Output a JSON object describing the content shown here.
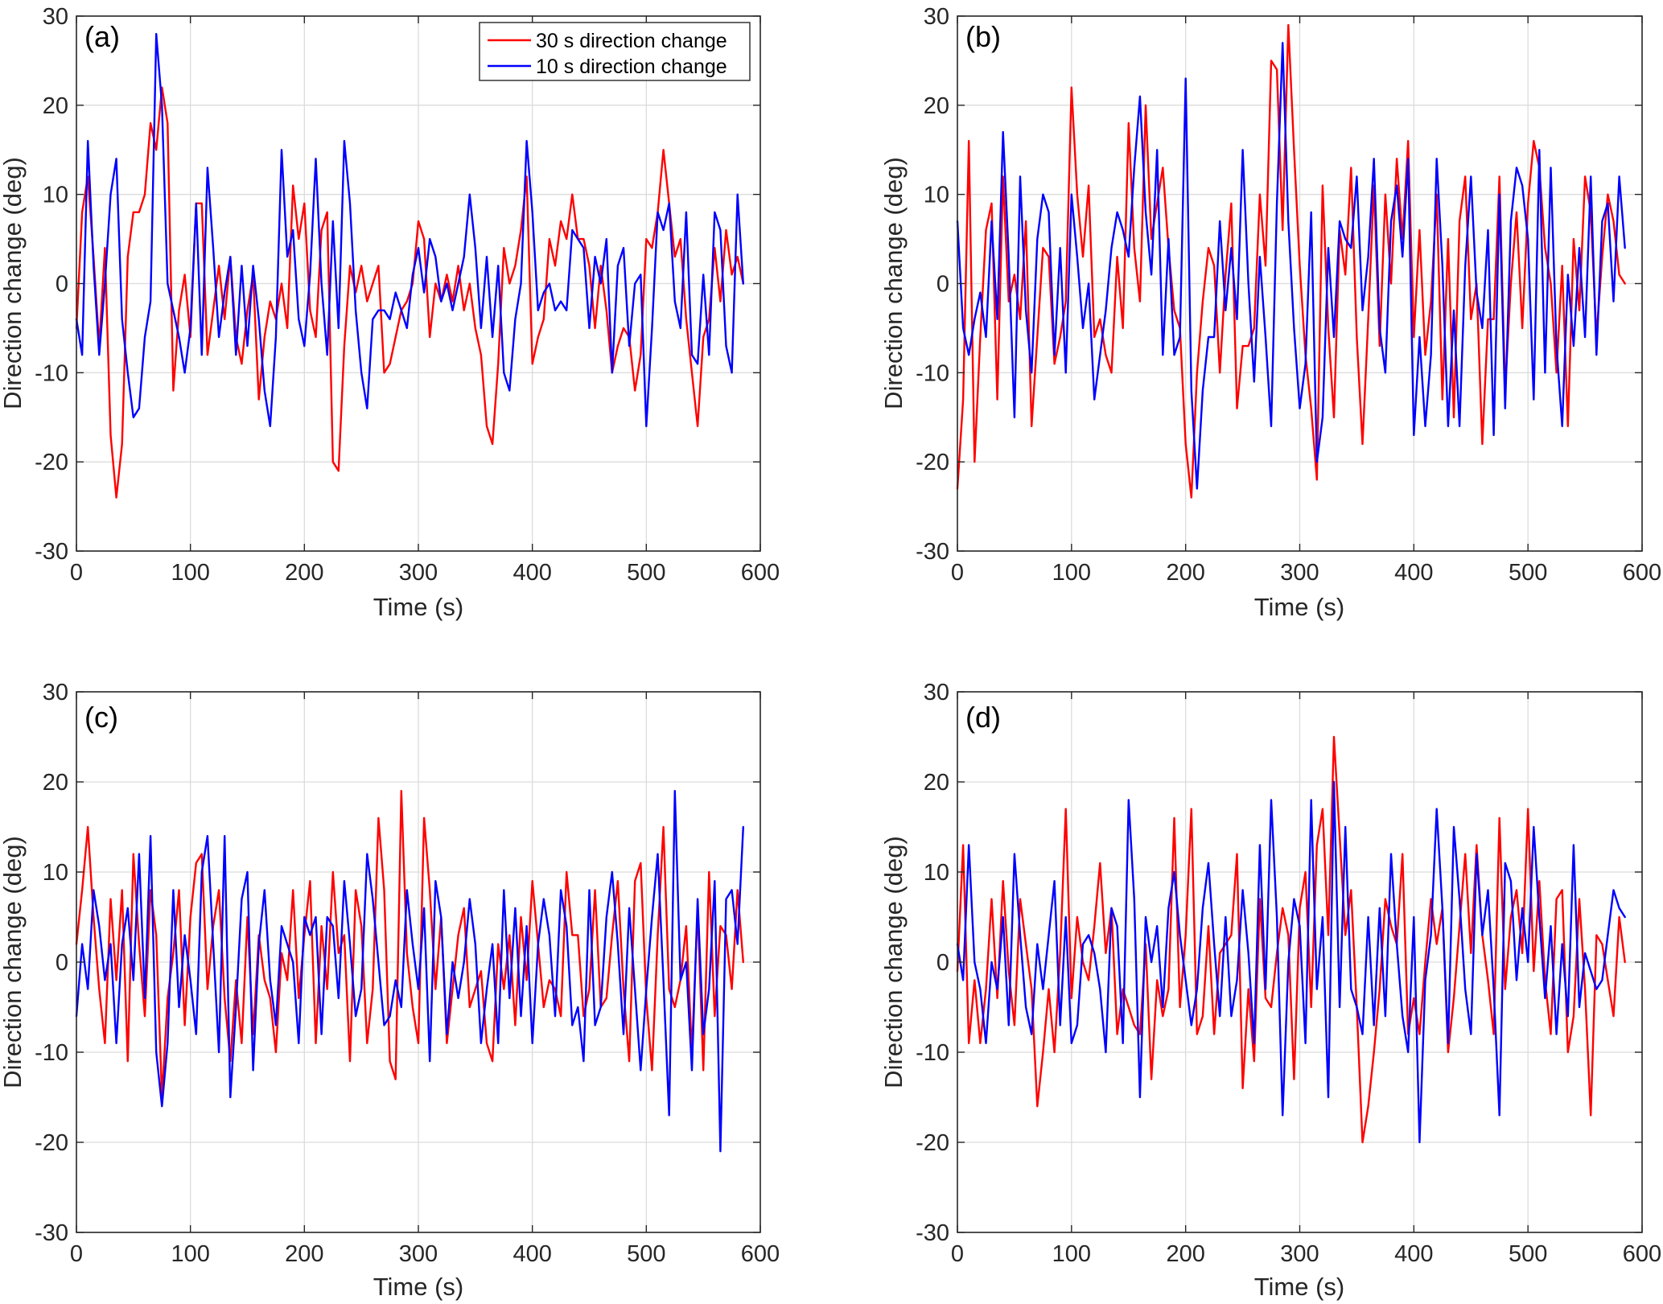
{
  "figure": {
    "legend": {
      "items": [
        {
          "label": "30 s direction change",
          "color": "#ff0000"
        },
        {
          "label": "10 s direction change",
          "color": "#0000ff"
        }
      ],
      "location": "top-right of panel (a)"
    }
  },
  "chart_data": [
    {
      "type": "line",
      "panel": "(a)",
      "title": "",
      "xlabel": "Time (s)",
      "ylabel": "Direction change (deg)",
      "xlim": [
        0,
        600
      ],
      "ylim": [
        -30,
        30
      ],
      "xticks": [
        0,
        100,
        200,
        300,
        400,
        500,
        600
      ],
      "yticks": [
        -30,
        -20,
        -10,
        0,
        10,
        20,
        30
      ],
      "grid": true,
      "legend": true,
      "x_step": 5,
      "series": [
        {
          "name": "30 s direction change",
          "color": "#ff0000",
          "values": [
            -5,
            8,
            12,
            3,
            -7,
            4,
            -17,
            -24,
            -18,
            3,
            8,
            8,
            10,
            18,
            15,
            22,
            18,
            -12,
            -3,
            1,
            -6,
            9,
            9,
            -8,
            -3,
            2,
            -4,
            3,
            -6,
            -9,
            -3,
            1,
            -13,
            -6,
            -2,
            -4,
            0,
            -5,
            11,
            5,
            9,
            -3,
            -6,
            6,
            8,
            -20,
            -21,
            -7,
            2,
            -1,
            2,
            -2,
            0,
            2,
            -10,
            -9,
            -6,
            -3,
            -2,
            0,
            7,
            5,
            -6,
            0,
            -2,
            1,
            -2,
            2,
            -3,
            0,
            -5,
            -8,
            -16,
            -18,
            -9,
            4,
            0,
            2,
            6,
            12,
            -9,
            -6,
            -4,
            5,
            2,
            7,
            5,
            10,
            5,
            5,
            2,
            -5,
            2,
            -3,
            -10,
            -7,
            -5,
            -6,
            -12,
            -8,
            5,
            4,
            8,
            15,
            9,
            3,
            5,
            -4,
            -10,
            -16,
            -6,
            -4,
            4,
            -2,
            6,
            1,
            3,
            0
          ]
        },
        {
          "name": "10 s direction change",
          "color": "#0000ff",
          "values": [
            -4,
            -8,
            16,
            2,
            -8,
            0,
            10,
            14,
            -4,
            -10,
            -15,
            -14,
            -6,
            -2,
            28,
            20,
            0,
            -3,
            -6,
            -10,
            -5,
            9,
            -8,
            13,
            4,
            -6,
            -1,
            3,
            -8,
            2,
            -7,
            2,
            -4,
            -12,
            -16,
            -6,
            15,
            3,
            6,
            -4,
            -7,
            1,
            14,
            0,
            -8,
            7,
            -5,
            16,
            9,
            -3,
            -10,
            -14,
            -4,
            -3,
            -3,
            -4,
            -1,
            -3,
            -5,
            1,
            4,
            -1,
            5,
            3,
            -2,
            0,
            -3,
            0,
            3,
            10,
            4,
            -5,
            3,
            -6,
            2,
            -10,
            -12,
            -4,
            0,
            16,
            8,
            -3,
            -1,
            0,
            -3,
            -2,
            -3,
            6,
            5,
            4,
            -5,
            3,
            0,
            5,
            -10,
            2,
            4,
            -7,
            0,
            1,
            -16,
            -5,
            8,
            6,
            9,
            -2,
            -5,
            8,
            -8,
            -9,
            1,
            -8,
            8,
            6,
            -7,
            -10,
            10,
            0
          ]
        }
      ]
    },
    {
      "type": "line",
      "panel": "(b)",
      "title": "",
      "xlabel": "Time (s)",
      "ylabel": "Direction change (deg)",
      "xlim": [
        0,
        600
      ],
      "ylim": [
        -30,
        30
      ],
      "xticks": [
        0,
        100,
        200,
        300,
        400,
        500,
        600
      ],
      "yticks": [
        -30,
        -20,
        -10,
        0,
        10,
        20,
        30
      ],
      "grid": true,
      "legend": false,
      "x_step": 5,
      "series": [
        {
          "name": "30 s direction change",
          "color": "#ff0000",
          "values": [
            -23,
            -13,
            16,
            -20,
            -6,
            6,
            9,
            -13,
            12,
            -2,
            1,
            -4,
            7,
            -16,
            -6,
            4,
            3,
            -9,
            -6,
            -2,
            22,
            10,
            3,
            11,
            -6,
            -4,
            -8,
            -10,
            3,
            -5,
            18,
            4,
            -2,
            20,
            5,
            9,
            13,
            4,
            -3,
            -5,
            -18,
            -24,
            -10,
            -2,
            4,
            2,
            -10,
            1,
            9,
            -14,
            -7,
            -7,
            -5,
            10,
            2,
            25,
            24,
            6,
            29,
            15,
            2,
            -8,
            -14,
            -22,
            11,
            -5,
            -15,
            6,
            1,
            13,
            -6,
            -18,
            -4,
            11,
            -7,
            10,
            0,
            14,
            5,
            16,
            -6,
            6,
            -8,
            -2,
            10,
            -13,
            5,
            -15,
            7,
            12,
            -4,
            0,
            -18,
            -4,
            -4,
            12,
            -12,
            0,
            8,
            -5,
            9,
            16,
            13,
            4,
            0,
            -10,
            2,
            -16,
            5,
            -3,
            12,
            8,
            -6,
            3,
            10,
            7,
            1,
            0
          ]
        },
        {
          "name": "10 s direction change",
          "color": "#0000ff",
          "values": [
            7,
            -5,
            -8,
            -4,
            -1,
            -6,
            7,
            -4,
            17,
            3,
            -15,
            12,
            -3,
            -10,
            5,
            10,
            8,
            -8,
            4,
            -10,
            10,
            3,
            -5,
            0,
            -13,
            -8,
            -3,
            4,
            8,
            6,
            3,
            13,
            21,
            8,
            1,
            15,
            -8,
            5,
            -8,
            -6,
            23,
            -12,
            -23,
            -12,
            -6,
            -6,
            7,
            -3,
            4,
            -4,
            15,
            0,
            -11,
            3,
            -6,
            -16,
            9,
            27,
            7,
            -5,
            -14,
            -9,
            8,
            -20,
            -15,
            4,
            -6,
            7,
            5,
            4,
            12,
            -3,
            3,
            14,
            -5,
            -10,
            7,
            11,
            3,
            14,
            -17,
            -6,
            -16,
            -8,
            14,
            2,
            -16,
            -3,
            -16,
            2,
            12,
            -1,
            -5,
            6,
            -17,
            10,
            -14,
            7,
            13,
            11,
            5,
            -13,
            15,
            -10,
            13,
            -7,
            -16,
            1,
            -7,
            4,
            -6,
            12,
            -8,
            7,
            9,
            -2,
            12,
            4
          ]
        }
      ]
    },
    {
      "type": "line",
      "panel": "(c)",
      "title": "",
      "xlabel": "Time (s)",
      "ylabel": "Direction change (deg)",
      "xlim": [
        0,
        600
      ],
      "ylim": [
        -30,
        30
      ],
      "xticks": [
        0,
        100,
        200,
        300,
        400,
        500,
        600
      ],
      "yticks": [
        -30,
        -20,
        -10,
        0,
        10,
        20,
        30
      ],
      "grid": true,
      "legend": false,
      "x_step": 5,
      "series": [
        {
          "name": "30 s direction change",
          "color": "#ff0000",
          "values": [
            2,
            8,
            15,
            5,
            -3,
            -9,
            7,
            -2,
            8,
            -11,
            12,
            2,
            -6,
            8,
            3,
            -15,
            -4,
            1,
            8,
            -7,
            5,
            11,
            12,
            -3,
            4,
            8,
            -4,
            -11,
            -2,
            -9,
            5,
            -8,
            3,
            -2,
            -4,
            -10,
            1,
            -2,
            8,
            -4,
            3,
            9,
            -9,
            4,
            -3,
            10,
            1,
            3,
            -11,
            8,
            4,
            -9,
            -3,
            16,
            8,
            -11,
            -13,
            19,
            1,
            -5,
            -9,
            16,
            8,
            -3,
            5,
            -9,
            -3,
            3,
            6,
            -5,
            -3,
            -1,
            -9,
            -11,
            2,
            -3,
            3,
            -7,
            5,
            -2,
            9,
            2,
            -5,
            -2,
            -3,
            -6,
            10,
            3,
            3,
            -6,
            -3,
            8,
            -5,
            -4,
            3,
            9,
            -3,
            -11,
            9,
            11,
            -4,
            -12,
            3,
            15,
            -3,
            -5,
            -2,
            4,
            -10,
            6,
            -12,
            10,
            -6,
            4,
            3,
            -3,
            8,
            0
          ]
        },
        {
          "name": "10 s direction change",
          "color": "#0000ff",
          "values": [
            -6,
            2,
            -3,
            8,
            4,
            -2,
            2,
            -9,
            2,
            6,
            -2,
            12,
            -4,
            14,
            -10,
            -16,
            -9,
            8,
            -5,
            3,
            -2,
            -8,
            10,
            14,
            2,
            -10,
            14,
            -15,
            -5,
            7,
            10,
            -12,
            2,
            8,
            -2,
            -7,
            4,
            2,
            0,
            -9,
            5,
            3,
            5,
            -8,
            5,
            4,
            -4,
            9,
            2,
            -6,
            -3,
            12,
            7,
            0,
            -7,
            -6,
            -2,
            -5,
            8,
            2,
            -3,
            6,
            -11,
            9,
            5,
            -8,
            0,
            -4,
            0,
            7,
            2,
            -9,
            -3,
            2,
            -9,
            8,
            -4,
            6,
            -6,
            4,
            -9,
            2,
            7,
            3,
            -6,
            8,
            4,
            -7,
            -5,
            -11,
            8,
            -7,
            -5,
            5,
            10,
            2,
            -8,
            6,
            -3,
            -12,
            -3,
            5,
            12,
            -2,
            -17,
            19,
            -2,
            0,
            -12,
            7,
            -8,
            -3,
            9,
            -21,
            7,
            8,
            2,
            15
          ]
        }
      ]
    },
    {
      "type": "line",
      "panel": "(d)",
      "title": "",
      "xlabel": "Time (s)",
      "ylabel": "Direction change (deg)",
      "xlim": [
        0,
        600
      ],
      "ylim": [
        -30,
        30
      ],
      "xticks": [
        0,
        100,
        200,
        300,
        400,
        500,
        600
      ],
      "yticks": [
        -30,
        -20,
        -10,
        0,
        10,
        20,
        30
      ],
      "grid": true,
      "legend": false,
      "x_step": 5,
      "series": [
        {
          "name": "30 s direction change",
          "color": "#ff0000",
          "values": [
            -1,
            13,
            -9,
            -2,
            -9,
            -3,
            7,
            -4,
            9,
            -1,
            -7,
            7,
            2,
            -3,
            -16,
            -10,
            -3,
            -10,
            1,
            17,
            -4,
            5,
            0,
            -2,
            4,
            11,
            1,
            6,
            -8,
            -3,
            -5,
            -7,
            -8,
            2,
            -13,
            -2,
            -6,
            -3,
            16,
            -5,
            3,
            17,
            -8,
            -6,
            4,
            -8,
            1,
            2,
            3,
            12,
            -14,
            -3,
            -11,
            7,
            -4,
            -5,
            1,
            6,
            3,
            -13,
            6,
            10,
            -5,
            13,
            17,
            3,
            25,
            14,
            3,
            8,
            -5,
            -20,
            -16,
            -10,
            -3,
            7,
            4,
            2,
            12,
            -8,
            -4,
            -8,
            0,
            7,
            2,
            6,
            -10,
            -4,
            4,
            12,
            1,
            13,
            3,
            -2,
            -8,
            16,
            -3,
            5,
            8,
            1,
            17,
            -1,
            9,
            -2,
            -8,
            7,
            8,
            -10,
            -6,
            7,
            -3,
            -17,
            3,
            2,
            -2,
            -6,
            5,
            0
          ]
        },
        {
          "name": "10 s direction change",
          "color": "#0000ff",
          "values": [
            2,
            -2,
            13,
            0,
            -3,
            -9,
            0,
            -3,
            5,
            -7,
            12,
            3,
            -5,
            -8,
            2,
            -3,
            3,
            9,
            -7,
            5,
            -9,
            -7,
            2,
            3,
            1,
            -3,
            -10,
            6,
            4,
            -9,
            18,
            7,
            -15,
            5,
            0,
            4,
            -5,
            6,
            10,
            3,
            -2,
            -7,
            -3,
            6,
            11,
            2,
            -6,
            5,
            -6,
            -2,
            8,
            1,
            -9,
            13,
            -3,
            18,
            5,
            -17,
            0,
            7,
            4,
            -9,
            18,
            -3,
            5,
            -15,
            20,
            -5,
            15,
            -3,
            -5,
            -8,
            5,
            -7,
            6,
            -6,
            12,
            2,
            -6,
            -10,
            5,
            -20,
            -2,
            3,
            17,
            6,
            -9,
            15,
            7,
            -3,
            -8,
            12,
            3,
            8,
            -3,
            -17,
            11,
            9,
            -2,
            6,
            0,
            15,
            5,
            -4,
            4,
            -8,
            2,
            -6,
            13,
            -5,
            1,
            -1,
            -3,
            -2,
            3,
            8,
            6,
            5
          ]
        }
      ]
    }
  ]
}
